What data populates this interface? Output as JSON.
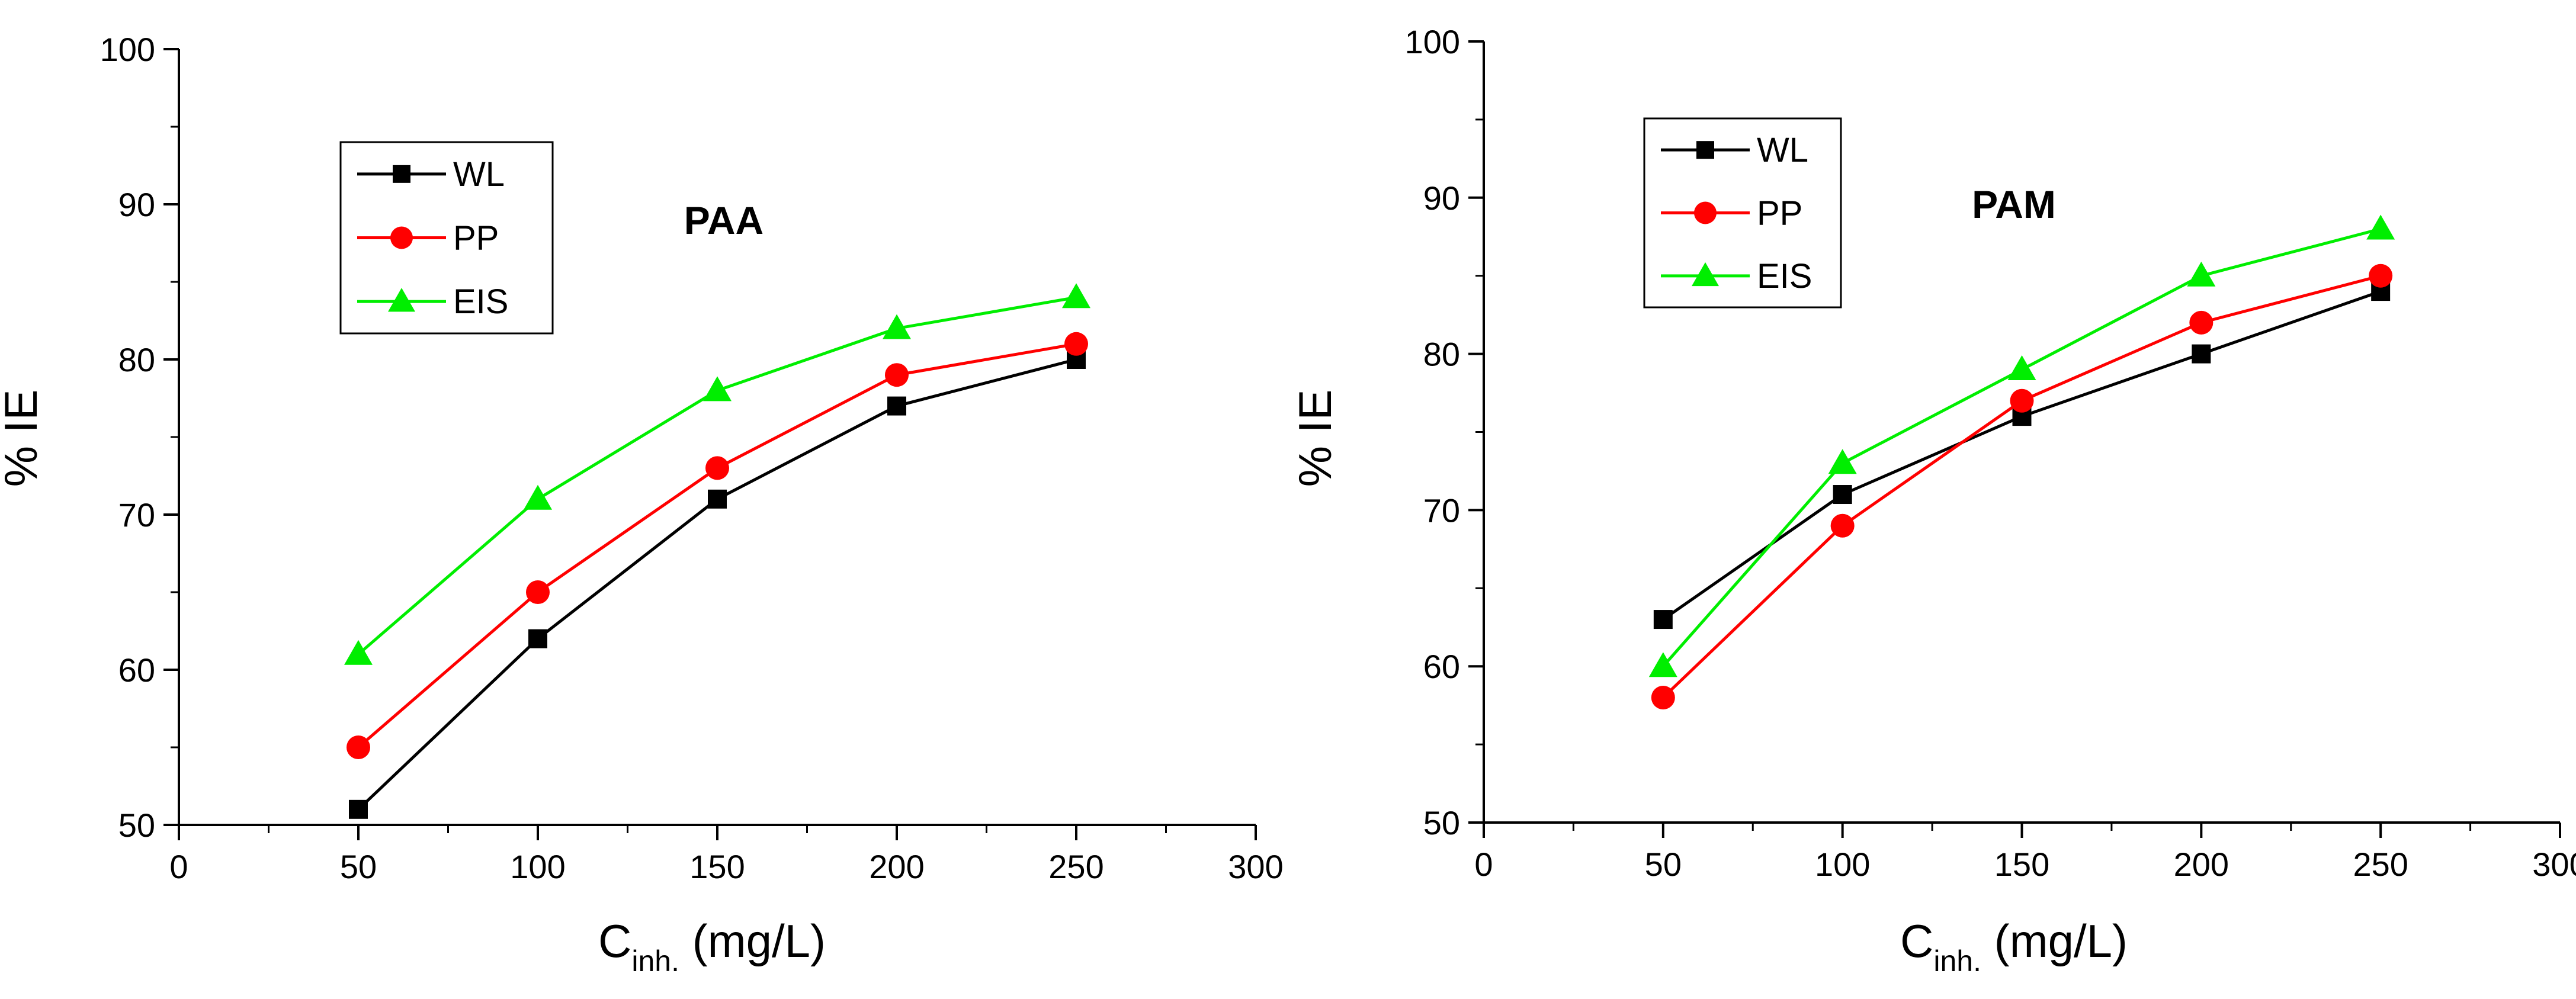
{
  "chart_data": [
    {
      "type": "line",
      "title": "PAA",
      "xlabel_main": "C",
      "xlabel_sub": "inh.",
      "xlabel_unit": "(mg/L)",
      "ylabel": "% IE",
      "xlim": [
        0,
        300
      ],
      "ylim": [
        50,
        100
      ],
      "xticks": [
        0,
        50,
        100,
        150,
        200,
        250,
        300
      ],
      "yticks": [
        50,
        60,
        70,
        80,
        90,
        100
      ],
      "x": [
        50,
        100,
        150,
        200,
        250
      ],
      "legend_position": "top-left",
      "series": [
        {
          "name": "WL",
          "color": "#000000",
          "marker": "square",
          "values": [
            51,
            62,
            71,
            77,
            80
          ]
        },
        {
          "name": "PP",
          "color": "#ff0000",
          "marker": "circle",
          "values": [
            55,
            65,
            73,
            79,
            81
          ]
        },
        {
          "name": "EIS",
          "color": "#00ee00",
          "marker": "triangle",
          "values": [
            61,
            71,
            78,
            82,
            84
          ]
        }
      ]
    },
    {
      "type": "line",
      "title": "PAM",
      "xlabel_main": "C",
      "xlabel_sub": "inh.",
      "xlabel_unit": "(mg/L)",
      "ylabel": "% IE",
      "xlim": [
        0,
        300
      ],
      "ylim": [
        50,
        100
      ],
      "xticks": [
        0,
        50,
        100,
        150,
        200,
        250,
        300
      ],
      "yticks": [
        50,
        60,
        70,
        80,
        90,
        100
      ],
      "x": [
        50,
        100,
        150,
        200,
        250
      ],
      "legend_position": "top-left",
      "series": [
        {
          "name": "WL",
          "color": "#000000",
          "marker": "square",
          "values": [
            63,
            71,
            76,
            80,
            84
          ]
        },
        {
          "name": "PP",
          "color": "#ff0000",
          "marker": "circle",
          "values": [
            58,
            69,
            77,
            82,
            85
          ]
        },
        {
          "name": "EIS",
          "color": "#00ee00",
          "marker": "triangle",
          "values": [
            60,
            73,
            79,
            85,
            88
          ]
        }
      ]
    }
  ]
}
